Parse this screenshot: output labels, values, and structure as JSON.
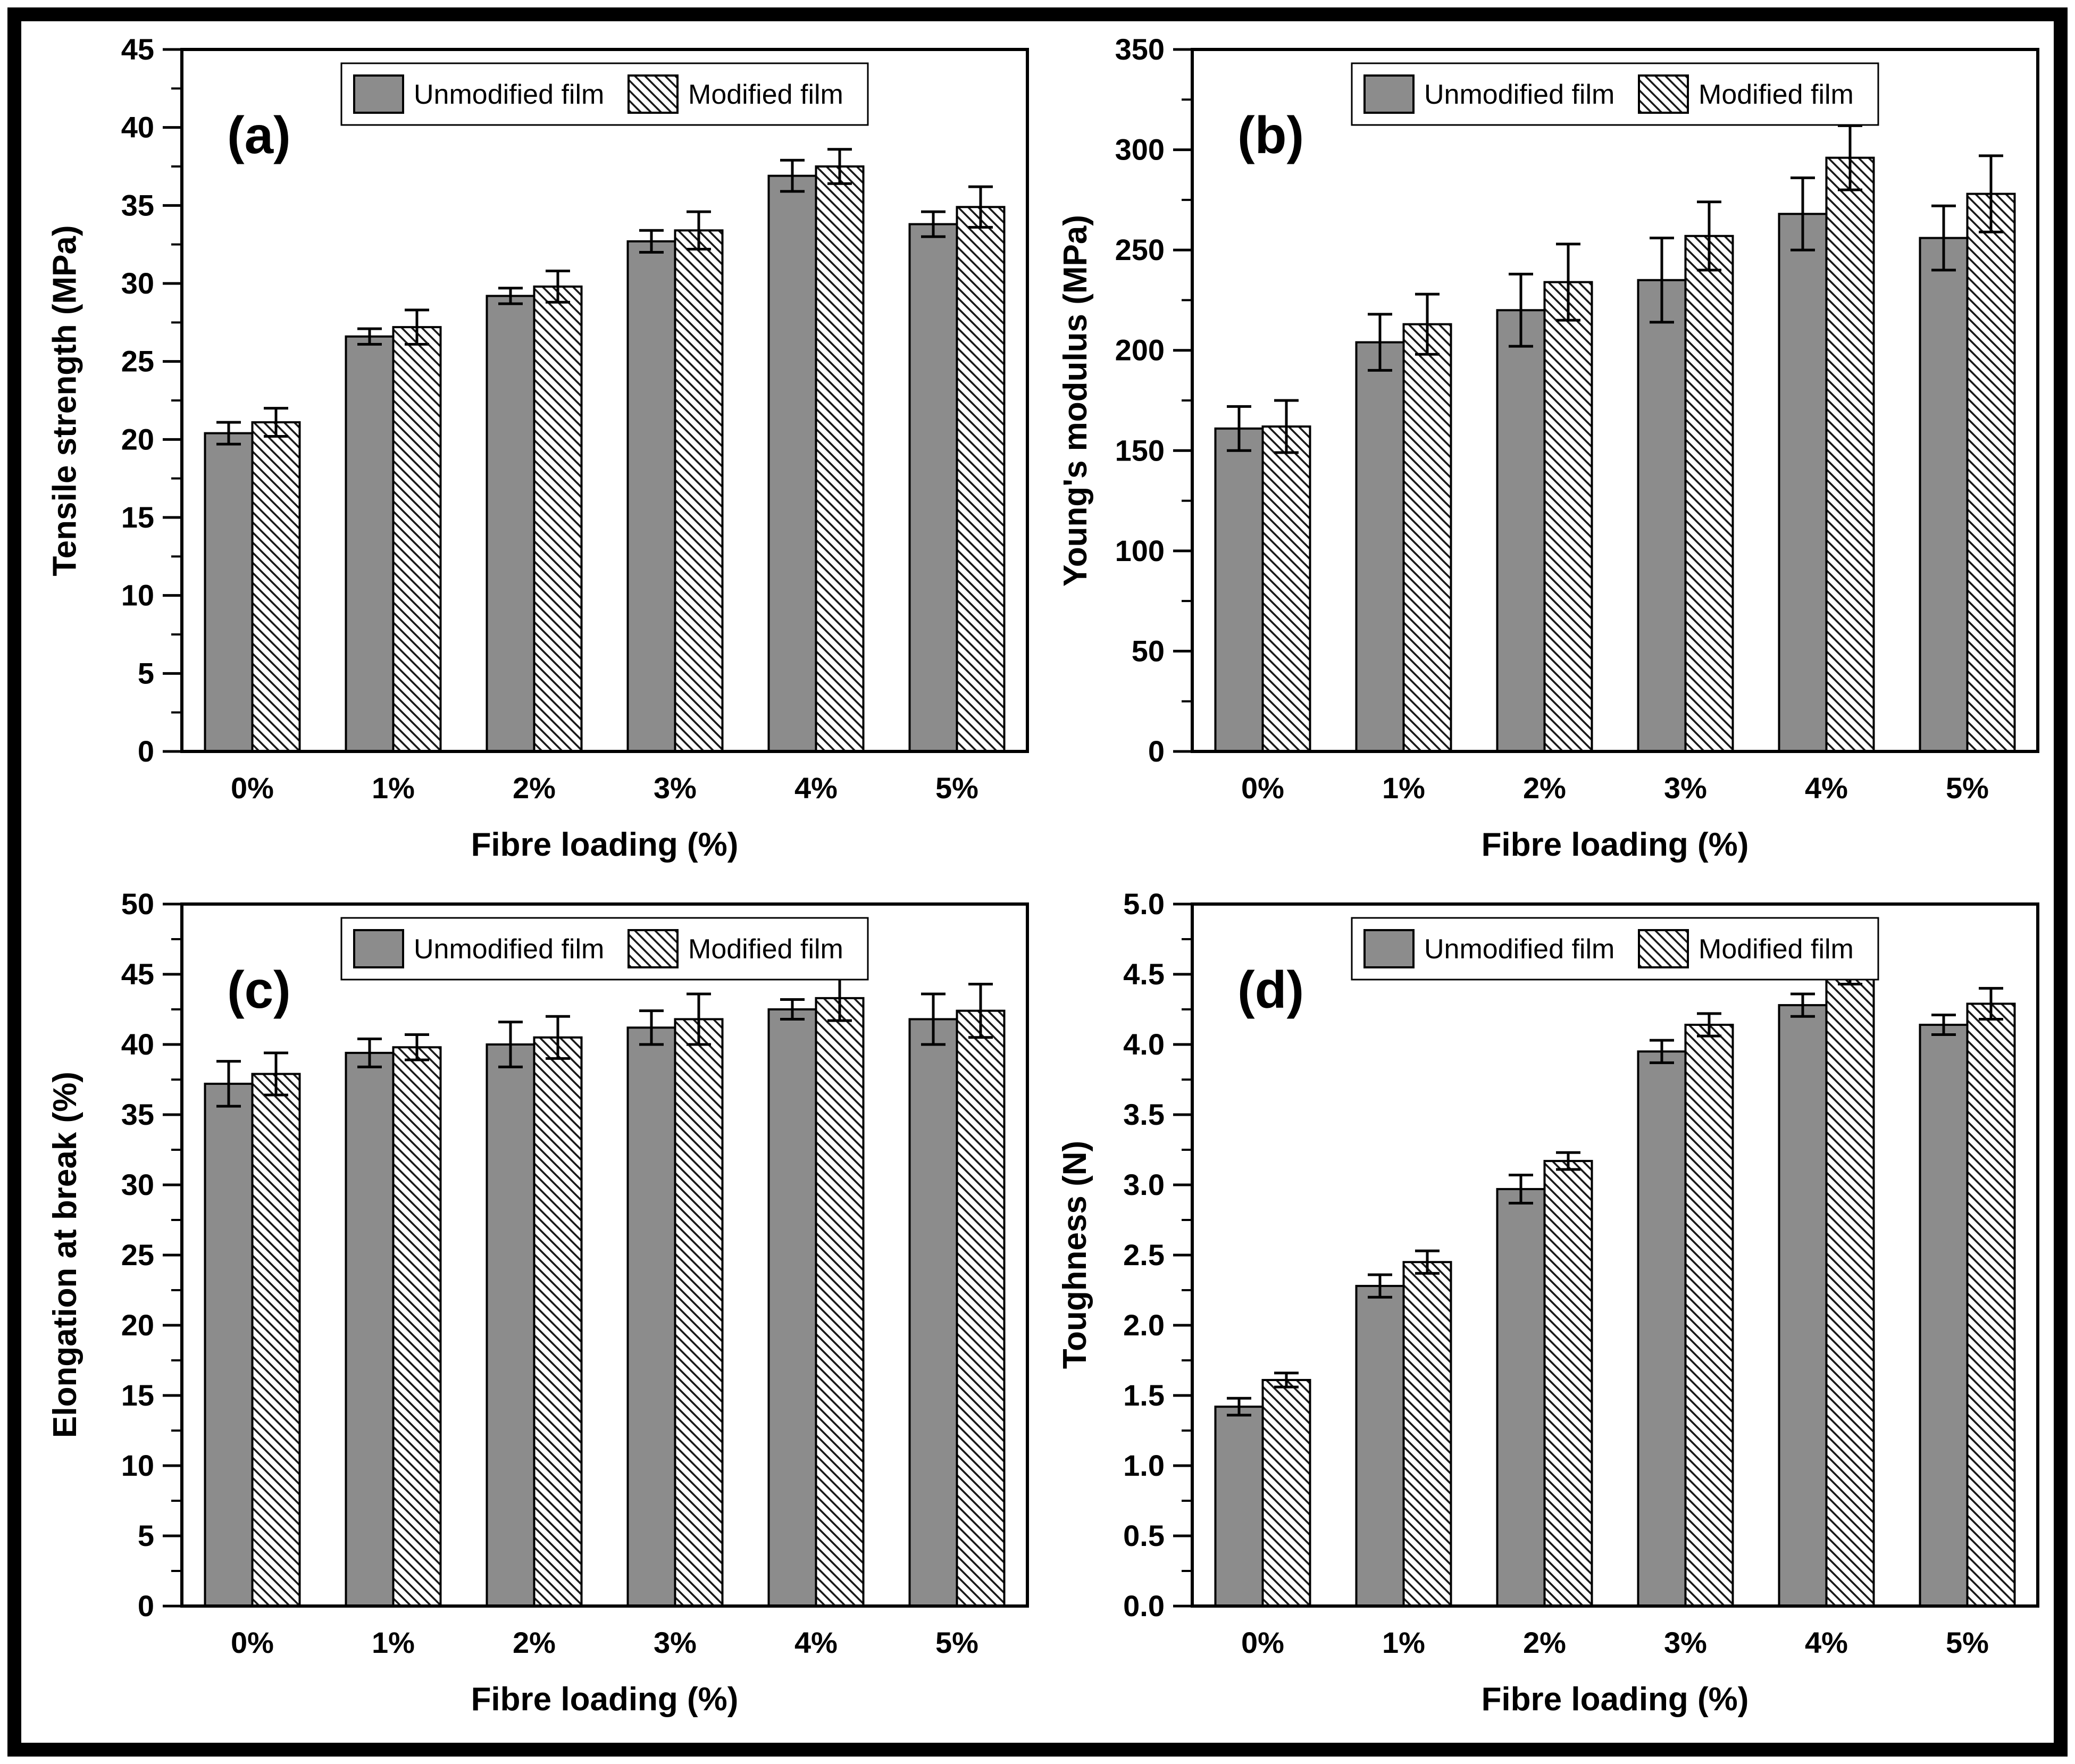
{
  "figure": {
    "background": "#ffffff",
    "frame_color": "#000000",
    "bar_fill_gray": "#8c8c8c",
    "bar_outline": "#000000",
    "hatch_line_color": "#1a1a1a",
    "axis_color": "#000000"
  },
  "legend": {
    "items": [
      {
        "label": "Unmodified film",
        "swatch": "solid-gray-swatch"
      },
      {
        "label": "Modified film",
        "swatch": "diagonal-hatch-swatch"
      }
    ]
  },
  "chart_data": [
    {
      "id": "a",
      "panel_label": "(a)",
      "type": "bar",
      "xlabel": "Fibre loading (%)",
      "ylabel": "Tensile strength (MPa)",
      "categories": [
        "0%",
        "1%",
        "2%",
        "3%",
        "4%",
        "5%"
      ],
      "ylim": [
        0,
        45
      ],
      "yticks": [
        "0",
        "5",
        "10",
        "15",
        "20",
        "25",
        "30",
        "35",
        "40",
        "45"
      ],
      "grid": false,
      "legend_position": "top-center",
      "series": [
        {
          "name": "Unmodified film",
          "values": [
            20.4,
            26.6,
            29.2,
            32.7,
            36.9,
            33.8
          ],
          "errors": [
            0.7,
            0.5,
            0.5,
            0.7,
            1.0,
            0.8
          ]
        },
        {
          "name": "Modified film",
          "values": [
            21.1,
            27.2,
            29.8,
            33.4,
            37.5,
            34.9
          ],
          "errors": [
            0.9,
            1.1,
            1.0,
            1.2,
            1.1,
            1.3
          ]
        }
      ]
    },
    {
      "id": "b",
      "panel_label": "(b)",
      "type": "bar",
      "xlabel": "Fibre loading (%)",
      "ylabel": "Young's modulus (MPa)",
      "categories": [
        "0%",
        "1%",
        "2%",
        "3%",
        "4%",
        "5%"
      ],
      "ylim": [
        0,
        350
      ],
      "yticks": [
        "0",
        "50",
        "100",
        "150",
        "200",
        "250",
        "300",
        "350"
      ],
      "grid": false,
      "legend_position": "top-center",
      "series": [
        {
          "name": "Unmodified film",
          "values": [
            161,
            204,
            220,
            235,
            268,
            256
          ],
          "errors": [
            11,
            14,
            18,
            21,
            18,
            16
          ]
        },
        {
          "name": "Modified film",
          "values": [
            162,
            213,
            234,
            257,
            296,
            278
          ],
          "errors": [
            13,
            15,
            19,
            17,
            16,
            19
          ]
        }
      ]
    },
    {
      "id": "c",
      "panel_label": "(c)",
      "type": "bar",
      "xlabel": "Fibre loading (%)",
      "ylabel": "Elongation at break (%)",
      "categories": [
        "0%",
        "1%",
        "2%",
        "3%",
        "4%",
        "5%"
      ],
      "ylim": [
        0,
        50
      ],
      "yticks": [
        "0",
        "5",
        "10",
        "15",
        "20",
        "25",
        "30",
        "35",
        "40",
        "45",
        "50"
      ],
      "grid": false,
      "legend_position": "top-center",
      "series": [
        {
          "name": "Unmodified film",
          "values": [
            37.2,
            39.4,
            40.0,
            41.2,
            42.5,
            41.8
          ],
          "errors": [
            1.6,
            1.0,
            1.6,
            1.2,
            0.7,
            1.8
          ]
        },
        {
          "name": "Modified film",
          "values": [
            37.9,
            39.8,
            40.5,
            41.8,
            43.3,
            42.4
          ],
          "errors": [
            1.5,
            0.9,
            1.5,
            1.8,
            1.6,
            1.9
          ]
        }
      ]
    },
    {
      "id": "d",
      "panel_label": "(d)",
      "type": "bar",
      "xlabel": "Fibre loading (%)",
      "ylabel": "Toughness (N)",
      "categories": [
        "0%",
        "1%",
        "2%",
        "3%",
        "4%",
        "5%"
      ],
      "ylim": [
        0,
        5
      ],
      "yticks": [
        "0.0",
        "0.5",
        "1.0",
        "1.5",
        "2.0",
        "2.5",
        "3.0",
        "3.5",
        "4.0",
        "4.5",
        "5.0"
      ],
      "grid": false,
      "legend_position": "top-center",
      "series": [
        {
          "name": "Unmodified film",
          "values": [
            1.42,
            2.28,
            2.97,
            3.95,
            4.28,
            4.14
          ],
          "errors": [
            0.06,
            0.08,
            0.1,
            0.08,
            0.08,
            0.07
          ]
        },
        {
          "name": "Modified film",
          "values": [
            1.61,
            2.45,
            3.17,
            4.14,
            4.51,
            4.29
          ],
          "errors": [
            0.05,
            0.08,
            0.06,
            0.08,
            0.08,
            0.11
          ]
        }
      ]
    }
  ]
}
